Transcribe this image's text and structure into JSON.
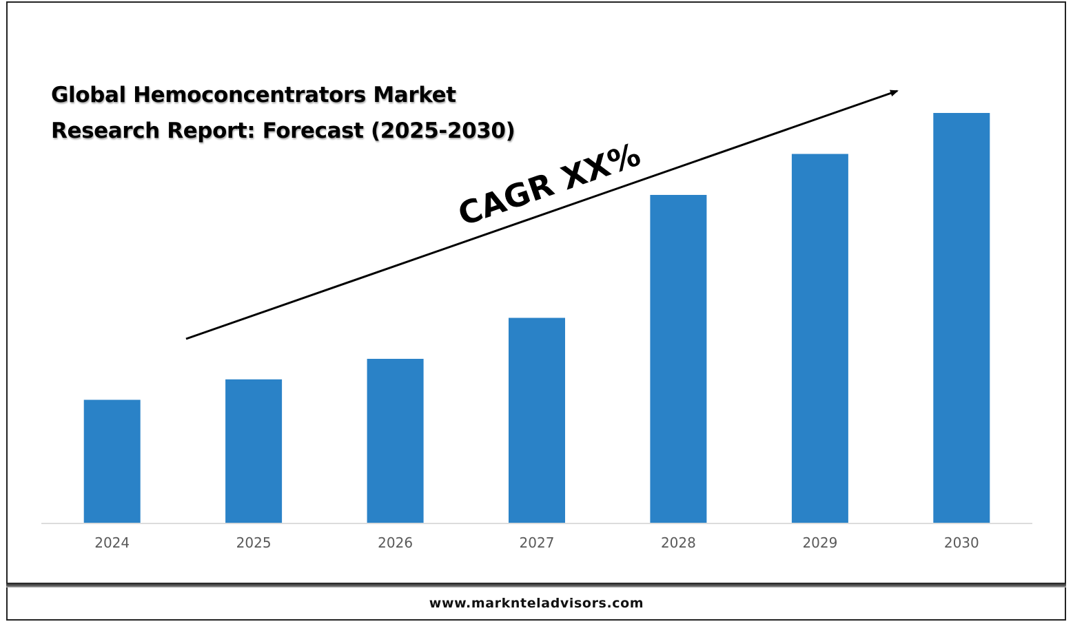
{
  "footer": {
    "url": "www.marknteladvisors.com"
  },
  "chart_data": {
    "type": "bar",
    "title": "Global Hemoconcentrators Market Research Report: Forecast (2025-2030)",
    "categories": [
      "2024",
      "2025",
      "2026",
      "2027",
      "2028",
      "2029",
      "2030"
    ],
    "values": [
      3,
      3.5,
      4,
      5,
      8,
      9,
      10
    ],
    "annotation": "CAGR XX%",
    "bar_color": "#2A82C7",
    "grid": false,
    "legend": "none"
  }
}
